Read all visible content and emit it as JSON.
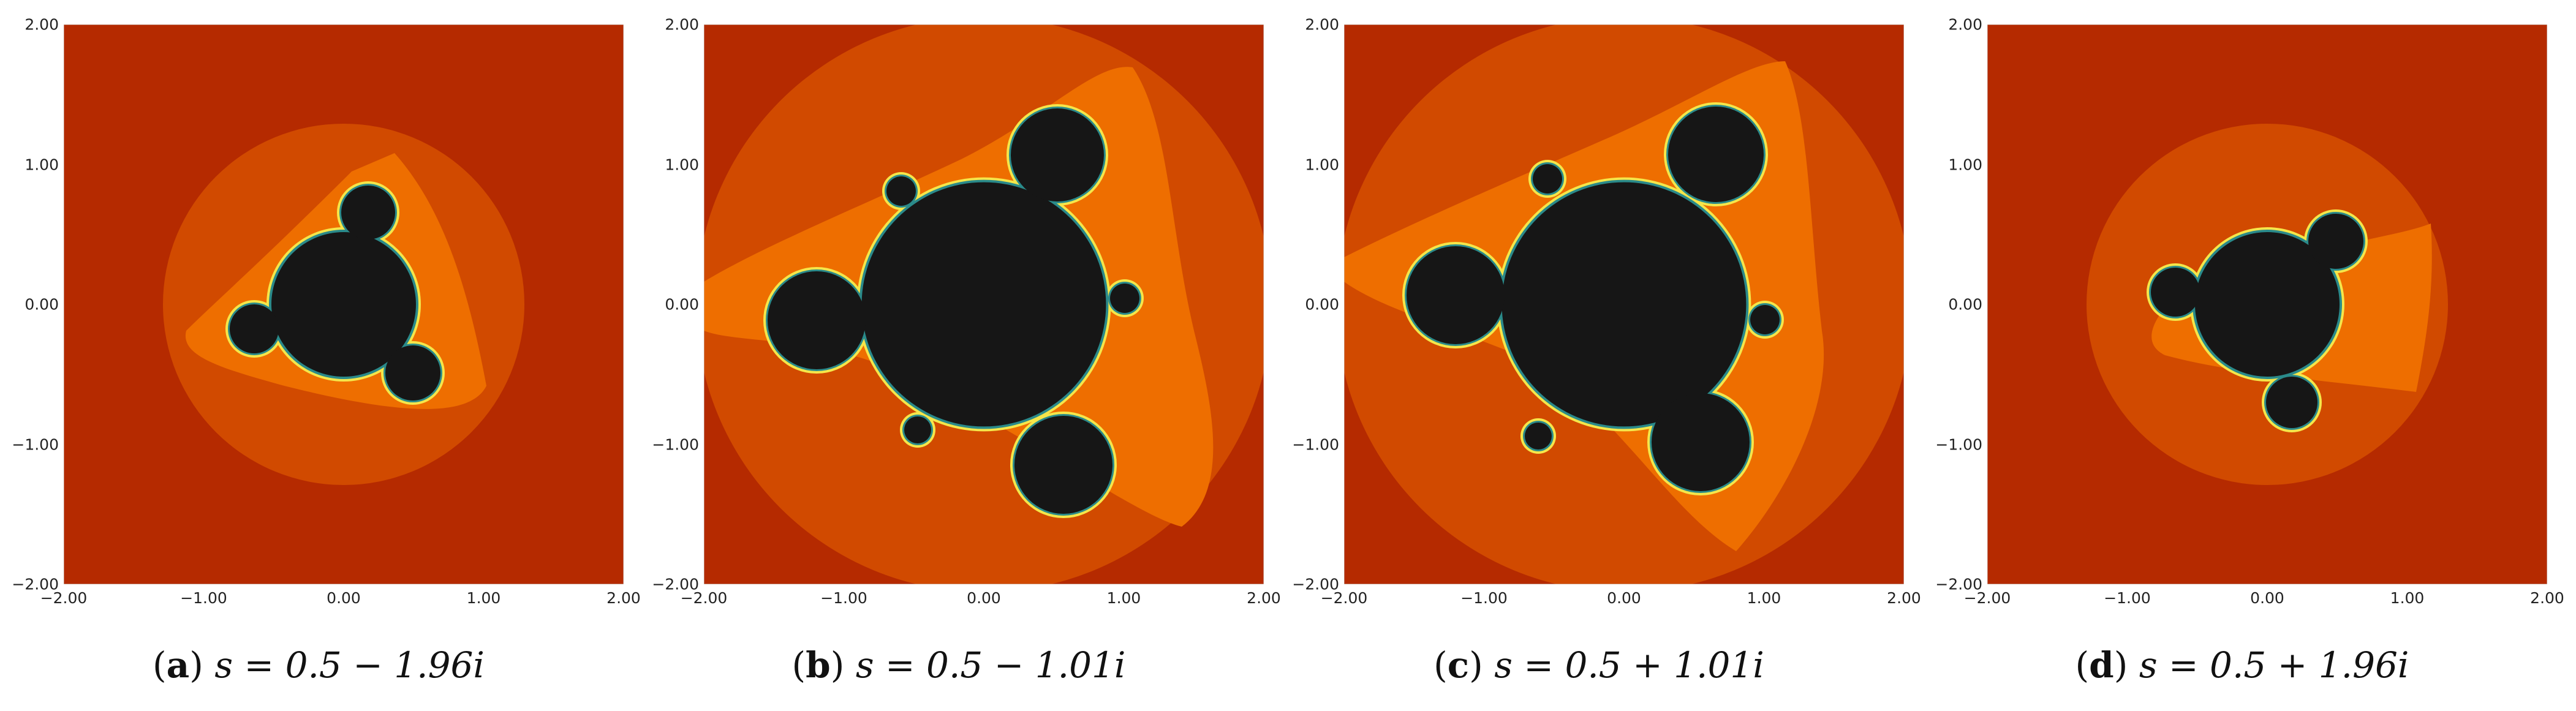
{
  "figure": {
    "panels": [
      {
        "label": "a",
        "caption_text": "s = 0.5 − 1.96i"
      },
      {
        "label": "b",
        "caption_text": "s = 0.5 − 1.01i"
      },
      {
        "label": "c",
        "caption_text": "s = 0.5 + 1.01i"
      },
      {
        "label": "d",
        "caption_text": "s = 0.5 + 1.96i"
      }
    ],
    "axis": {
      "x_ticks": [
        "−2.00",
        "−1.00",
        "0.00",
        "1.00",
        "2.00"
      ],
      "y_ticks": [
        "2.00",
        "1.00",
        "0.00",
        "−1.00",
        "−2.00"
      ],
      "x_range": [
        -2,
        2
      ],
      "y_range": [
        -2,
        2
      ]
    },
    "colors": {
      "outer": "#b52a00",
      "band1": "#d14a00",
      "band2": "#ee6e00",
      "band3": "#f58a10",
      "boundary": "#f5e64a",
      "fractal_edge": "#2a8a8a",
      "fractal_fill": "#161616"
    }
  }
}
